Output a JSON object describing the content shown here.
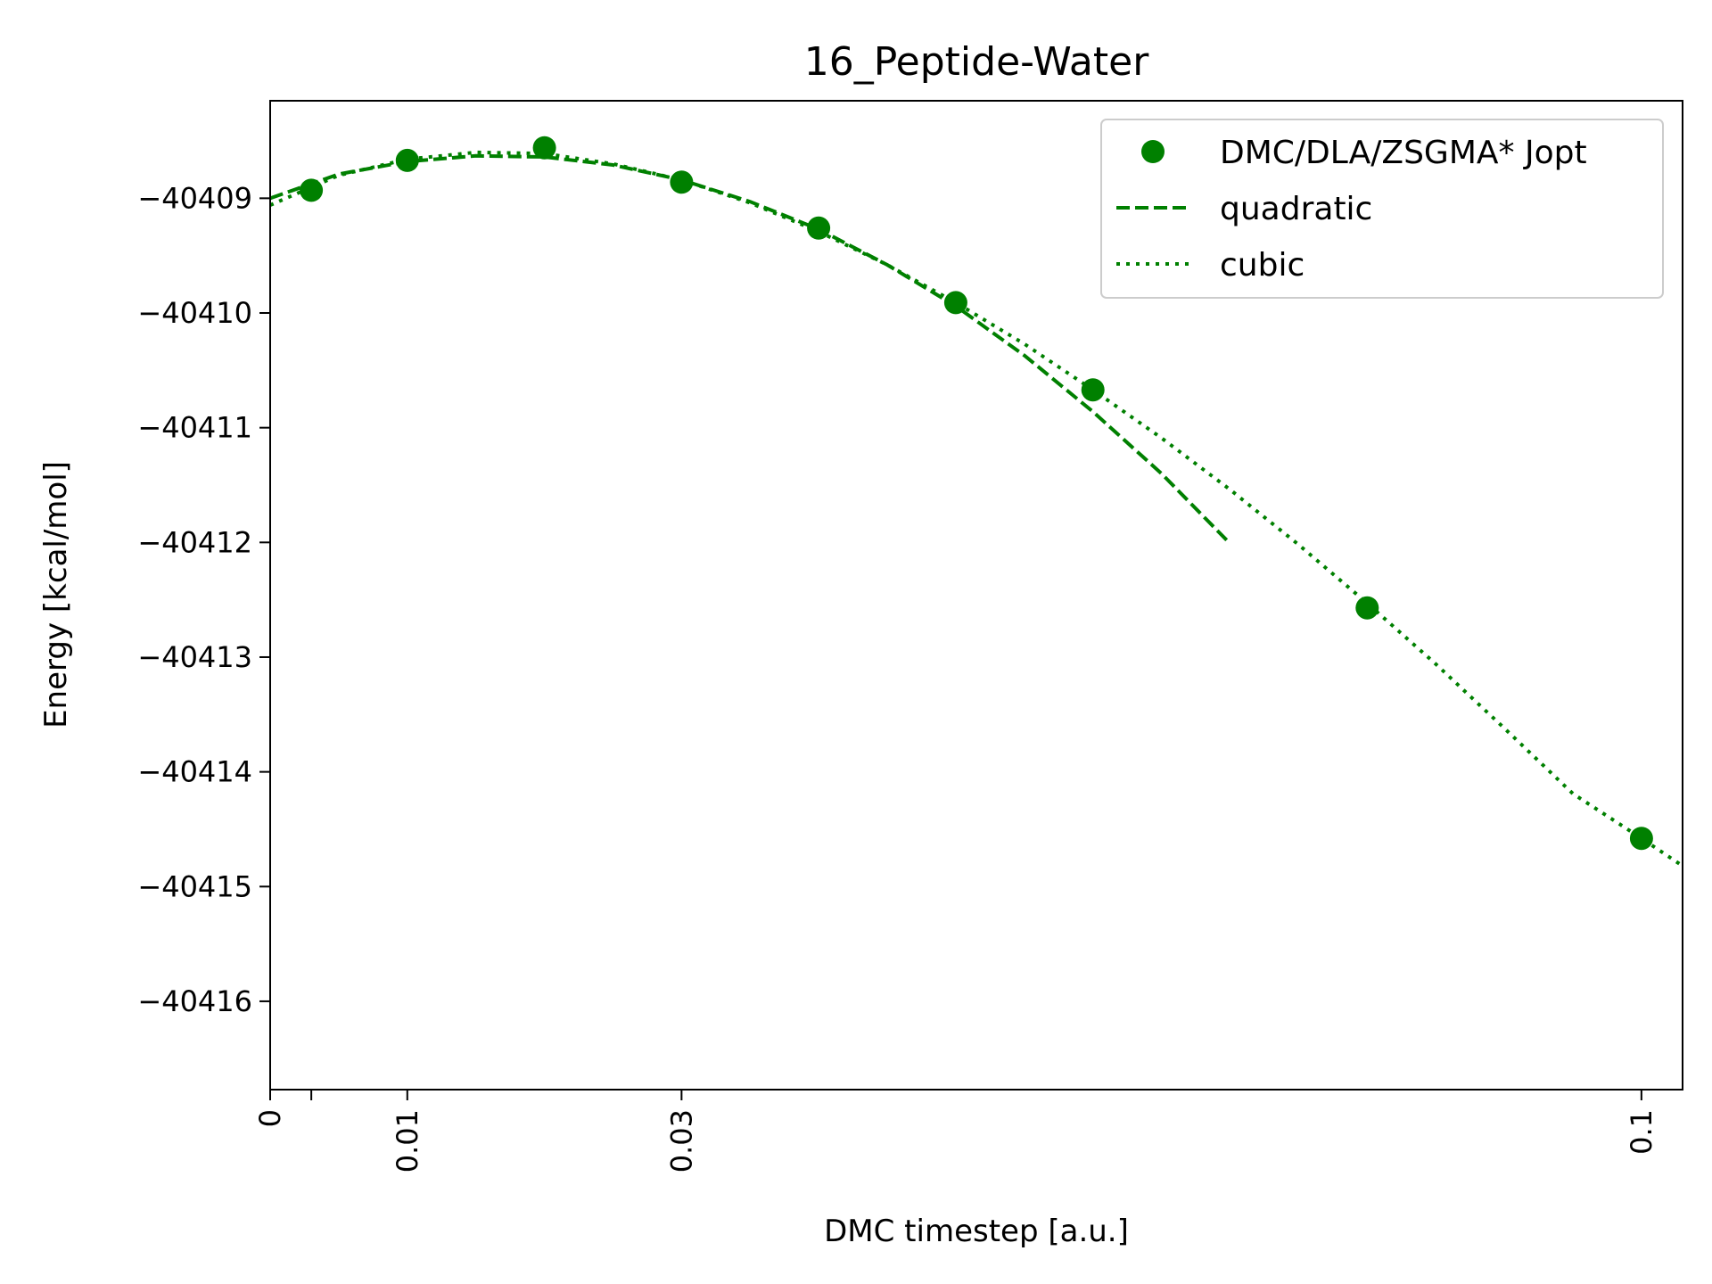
{
  "chart_data": {
    "type": "line",
    "title": "16_Peptide-Water",
    "xlabel": "DMC timestep [a.u.]",
    "ylabel": "Energy [kcal/mol]",
    "xlim": [
      0,
      0.103
    ],
    "ylim": [
      -40416.77,
      -40408.15
    ],
    "xticks": [
      {
        "value": 0,
        "label": "0"
      },
      {
        "value": 0.003,
        "label": ""
      },
      {
        "value": 0.01,
        "label": "0.01"
      },
      {
        "value": 0.03,
        "label": "0.03"
      },
      {
        "value": 0.1,
        "label": "0.1"
      }
    ],
    "yticks": [
      {
        "value": -40409,
        "label": "−40409"
      },
      {
        "value": -40410,
        "label": "−40410"
      },
      {
        "value": -40411,
        "label": "−40411"
      },
      {
        "value": -40412,
        "label": "−40412"
      },
      {
        "value": -40413,
        "label": "−40413"
      },
      {
        "value": -40414,
        "label": "−40414"
      },
      {
        "value": -40415,
        "label": "−40415"
      },
      {
        "value": -40416,
        "label": "−40416"
      }
    ],
    "grid": false,
    "legend_position": "top-right",
    "color": "#008000",
    "series": [
      {
        "name": "DMC/DLA/ZSGMA* Jopt",
        "style": "markers",
        "x": [
          0.003,
          0.01,
          0.02,
          0.03,
          0.04,
          0.05,
          0.06,
          0.08,
          0.1
        ],
        "y": [
          -40408.93,
          -40408.67,
          -40408.56,
          -40408.86,
          -40409.26,
          -40409.91,
          -40410.67,
          -40412.57,
          -40414.58
        ]
      },
      {
        "name": "quadratic",
        "style": "dashed",
        "x": [
          0,
          0.005,
          0.01,
          0.015,
          0.02,
          0.025,
          0.03,
          0.035,
          0.04,
          0.045,
          0.05,
          0.055,
          0.06,
          0.065,
          0.07
        ],
        "y": [
          -40409.0,
          -40408.79,
          -40408.68,
          -40408.63,
          -40408.64,
          -40408.71,
          -40408.84,
          -40409.03,
          -40409.27,
          -40409.58,
          -40409.94,
          -40410.37,
          -40410.86,
          -40411.4,
          -40412.01
        ]
      },
      {
        "name": "cubic",
        "style": "dotted",
        "x": [
          0,
          0.005,
          0.01,
          0.015,
          0.02,
          0.025,
          0.03,
          0.035,
          0.04,
          0.045,
          0.05,
          0.055,
          0.06,
          0.065,
          0.07,
          0.075,
          0.08,
          0.085,
          0.09,
          0.095,
          0.1,
          0.103
        ],
        "y": [
          -40409.06,
          -40408.8,
          -40408.66,
          -40408.6,
          -40408.61,
          -40408.7,
          -40408.84,
          -40409.04,
          -40409.29,
          -40409.58,
          -40409.91,
          -40410.27,
          -40410.67,
          -40411.09,
          -40411.54,
          -40412.02,
          -40412.53,
          -40413.06,
          -40413.62,
          -40414.19,
          -40414.58,
          -40414.82
        ]
      }
    ]
  }
}
